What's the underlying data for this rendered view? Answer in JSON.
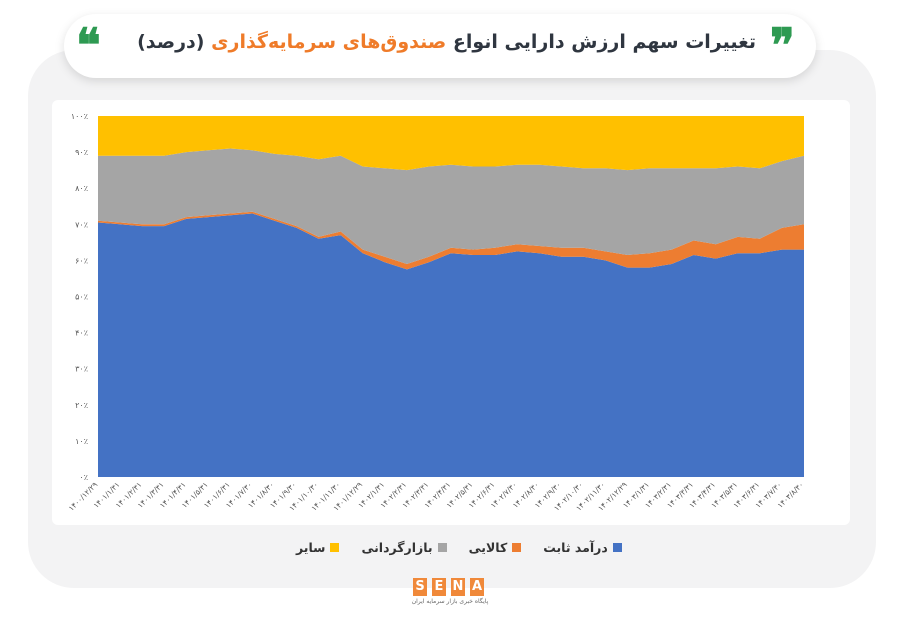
{
  "header": {
    "title_part1": "تغییرات سهم ارزش دارایی انواع",
    "title_highlight": "صندوق‌های سرمایه‌گذاری",
    "title_part2": "(درصد)",
    "quote_glyph_left": "❝",
    "quote_glyph_right": "❞"
  },
  "colors": {
    "fixed_income": "#4472c4",
    "commodity": "#ed7d31",
    "equity": "#a5a5a5",
    "other": "#ffc000",
    "quote": "#2e9a52",
    "highlight": "#ef7b29"
  },
  "logo": {
    "letters": [
      "S",
      "E",
      "N",
      "A"
    ],
    "subtitle": "پایگاه خبری بازار سرمایه ایران"
  },
  "chart_data": {
    "type": "area",
    "stacked": true,
    "percent": true,
    "ylim": [
      0,
      100
    ],
    "y_ticks": [
      "۰٪",
      "۱۰٪",
      "۲۰٪",
      "۳۰٪",
      "۴۰٪",
      "۵۰٪",
      "۶۰٪",
      "۷۰٪",
      "۸۰٪",
      "۹۰٪",
      "۱۰۰٪"
    ],
    "y_tick_values": [
      0,
      10,
      20,
      30,
      40,
      50,
      60,
      70,
      80,
      90,
      100
    ],
    "x_tick_labels": [
      "۱۴۰۰/۱۲/۲۹",
      "۱۴۰۱/۱/۳۱",
      "۱۴۰۱/۲/۳۱",
      "۱۴۰۱/۳/۳۱",
      "۱۴۰۱/۴/۳۱",
      "۱۴۰۱/۵/۳۱",
      "۱۴۰۱/۶/۳۱",
      "۱۴۰۱/۷/۳۰",
      "۱۴۰۱/۸/۳۰",
      "۱۴۰۱/۹/۳۰",
      "۱۴۰۱/۱۰/۳۰",
      "۱۴۰۱/۱۱/۳۰",
      "۱۴۰۱/۱۲/۲۹",
      "۱۴۰۲/۱/۳۱",
      "۱۴۰۲/۲/۳۱",
      "۱۴۰۲/۳/۳۱",
      "۱۴۰۲/۴/۳۱",
      "۱۴۰۲/۵/۳۱",
      "۱۴۰۲/۶/۳۱",
      "۱۴۰۲/۷/۳۰",
      "۱۴۰۲/۸/۳۰",
      "۱۴۰۲/۹/۳۰",
      "۱۴۰۲/۱۰/۳۰",
      "۱۴۰۲/۱۱/۳۰",
      "۱۴۰۲/۱۲/۲۹",
      "۱۴۰۳/۱/۳۱",
      "۱۴۰۳/۲/۳۱",
      "۱۴۰۳/۳/۳۱",
      "۱۴۰۳/۴/۳۱",
      "۱۴۰۳/۵/۳۱",
      "۱۴۰۳/۶/۳۱",
      "۱۴۰۳/۷/۳۰",
      "۱۴۰۳/۸/۳۰"
    ],
    "series": [
      {
        "name": "درآمد ثابت",
        "color": "#4472c4",
        "values": [
          70.5,
          70,
          69.5,
          69.5,
          71.5,
          72,
          72.5,
          73,
          71,
          69,
          66,
          67,
          62,
          59.5,
          57.5,
          59.5,
          62,
          61.5,
          61.5,
          62.5,
          62,
          61,
          61,
          60,
          58,
          58,
          59,
          61.5,
          60.5,
          62,
          62,
          63,
          63
        ]
      },
      {
        "name": "کالایی",
        "color": "#ed7d31",
        "values": [
          0.5,
          0.5,
          0.5,
          0.5,
          0.5,
          0.5,
          0.5,
          0.5,
          0.5,
          0.5,
          0.5,
          1,
          1,
          1.5,
          1.5,
          1.5,
          1.5,
          1.5,
          2,
          2,
          2,
          2.5,
          2.5,
          2.5,
          3.5,
          4,
          4,
          4,
          4,
          4.5,
          4,
          6,
          7
        ]
      },
      {
        "name": "بازارگردانی",
        "color": "#a5a5a5",
        "values": [
          18,
          18.5,
          19,
          19,
          18,
          18,
          18,
          17,
          18,
          19.5,
          21.5,
          21,
          23,
          24.5,
          26,
          25,
          23,
          23,
          22.5,
          22,
          22.5,
          22.5,
          22,
          23,
          23.5,
          23.5,
          22.5,
          20,
          21,
          19.5,
          19.5,
          18.5,
          19
        ]
      },
      {
        "name": "سایر",
        "color": "#ffc000",
        "values": [
          11,
          11,
          11,
          11,
          10,
          9.5,
          9,
          9.5,
          10.5,
          11,
          12,
          11,
          14,
          14.5,
          15,
          14,
          13.5,
          14,
          14,
          13.5,
          13.5,
          14,
          14.5,
          14.5,
          15,
          14.5,
          14.5,
          14.5,
          14.5,
          14,
          14.5,
          12.5,
          11
        ]
      }
    ]
  }
}
